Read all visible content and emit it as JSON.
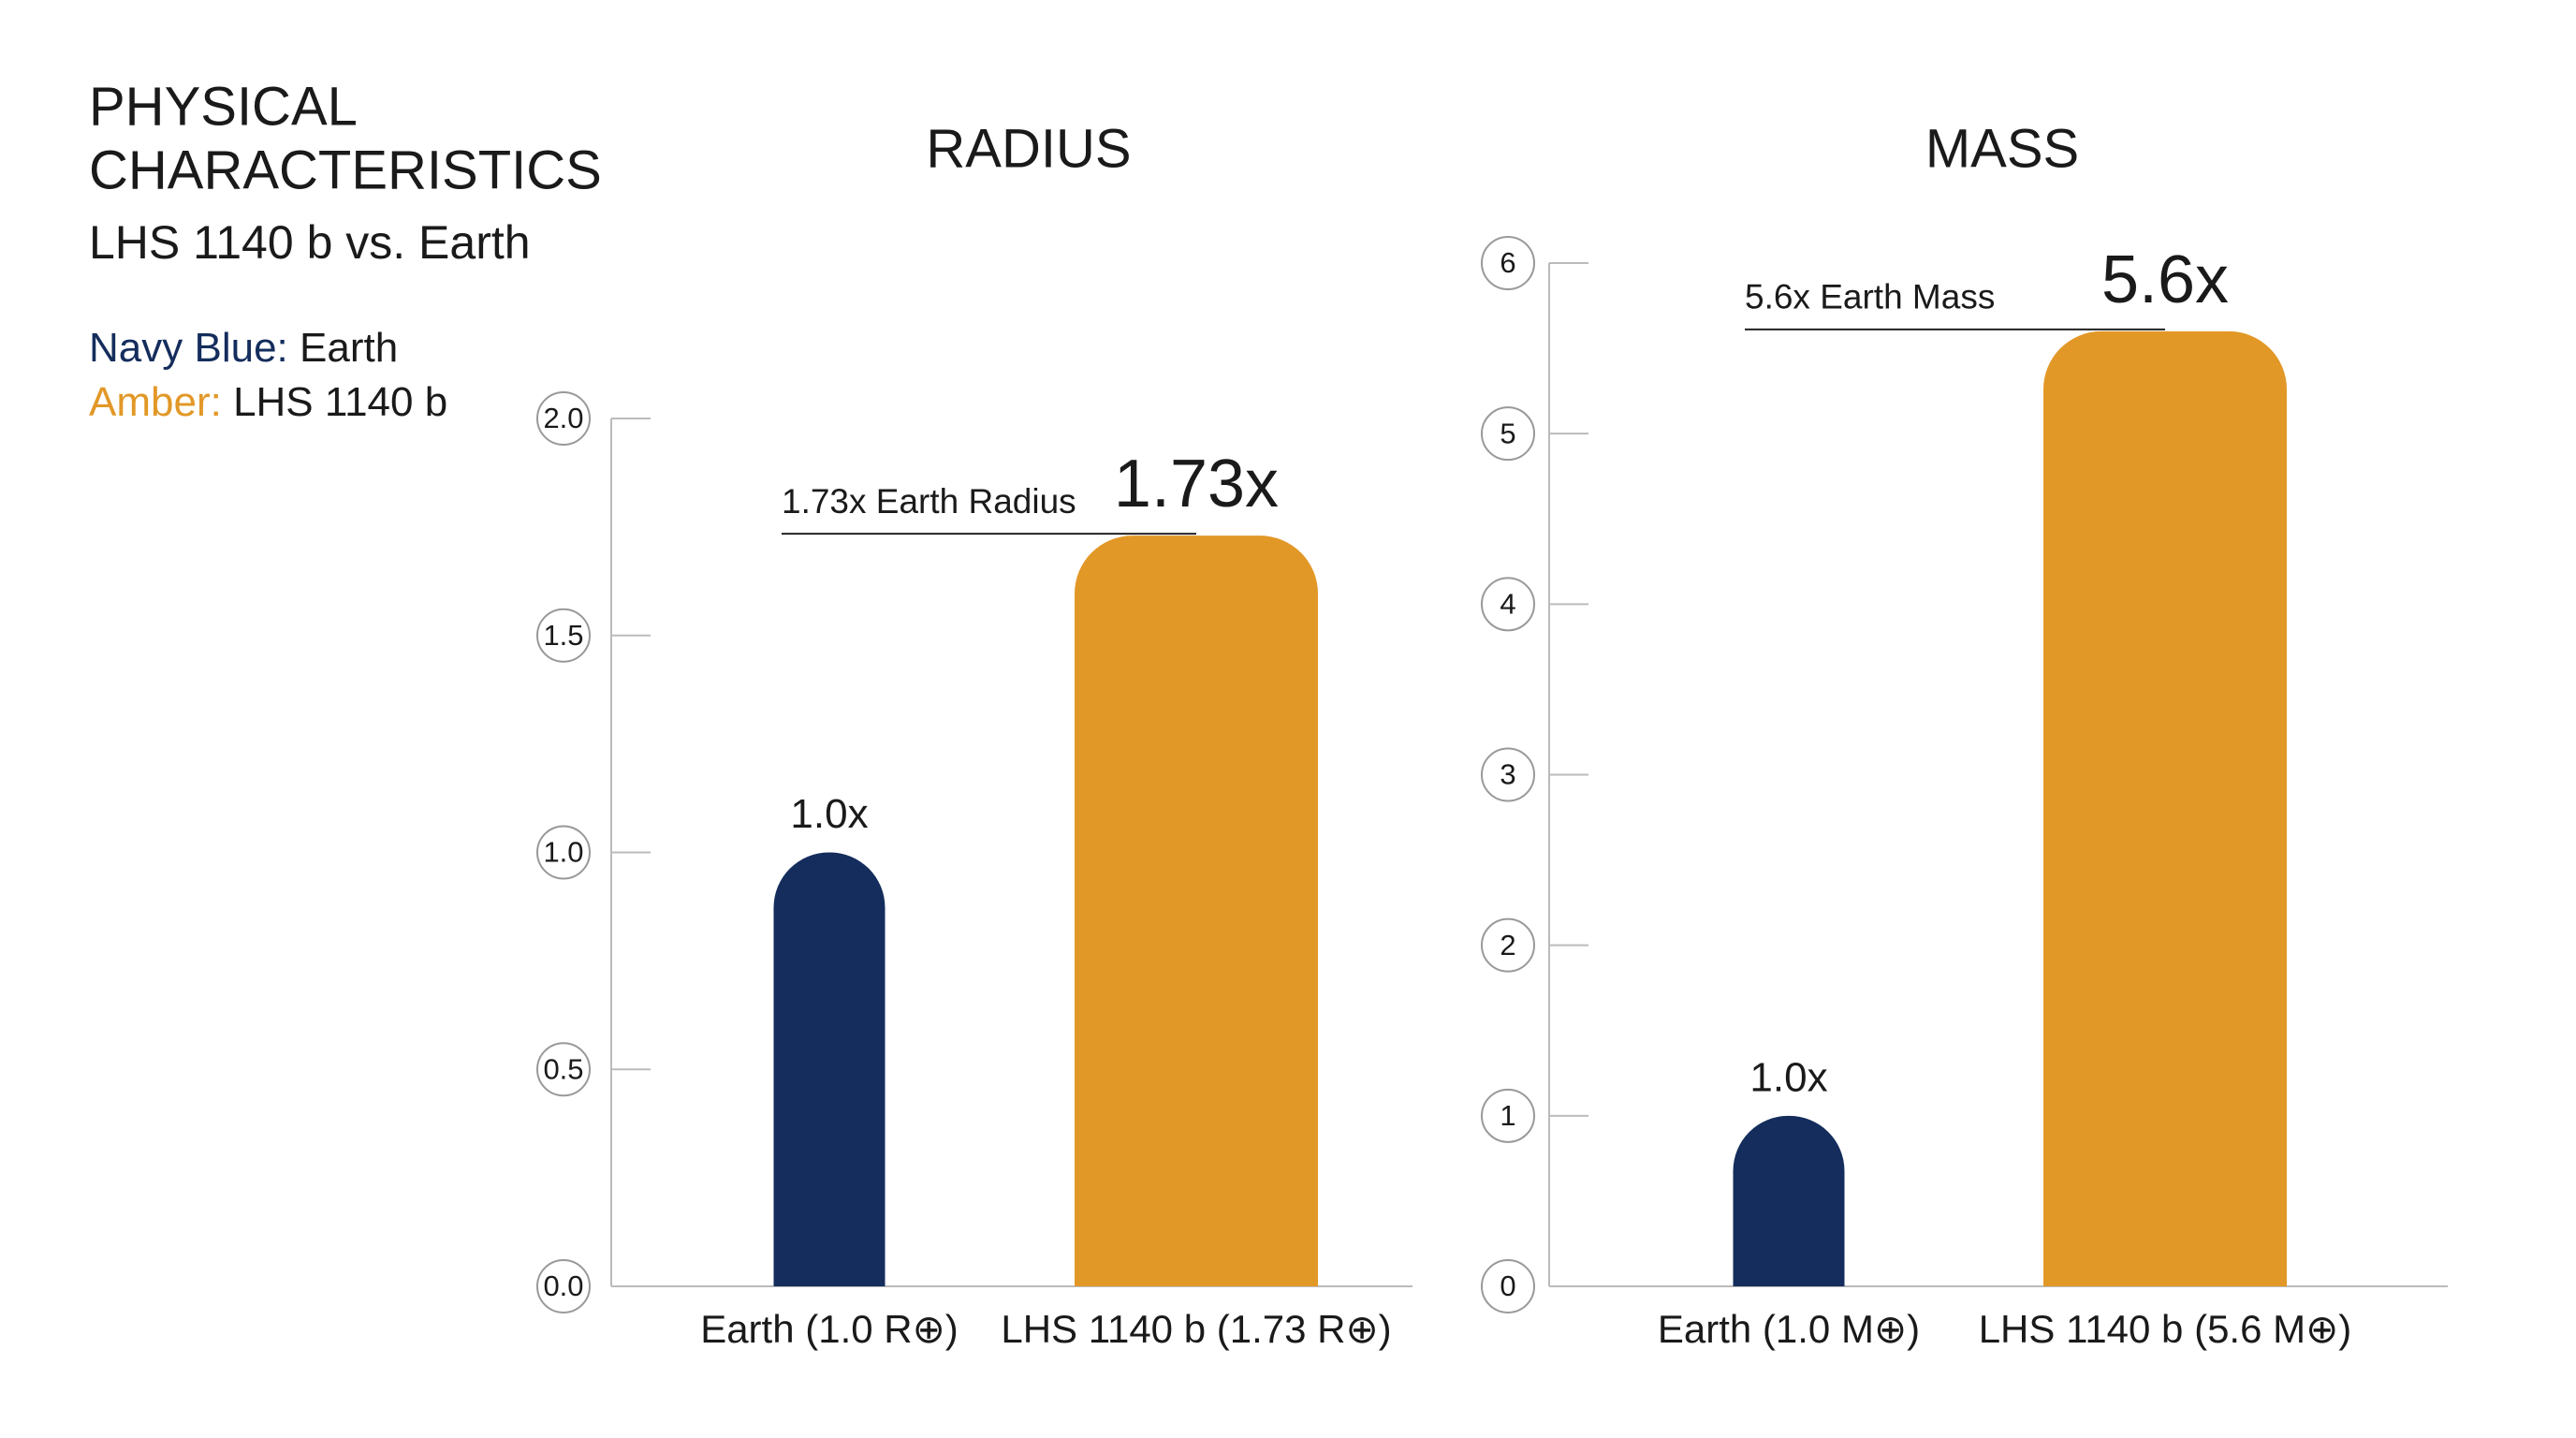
{
  "header": {
    "title_lines": [
      "PHYSICAL",
      "CHARACTERISTICS"
    ],
    "subtitle": "LHS 1140 b vs. Earth"
  },
  "legend": [
    {
      "key": "Navy Blue:",
      "label": "Earth",
      "color": "#142d5c"
    },
    {
      "key": "Amber:",
      "label": "LHS 1140 b",
      "color": "#e29827"
    }
  ],
  "chart_data": [
    {
      "type": "bar",
      "title": "RADIUS",
      "categories": [
        "Earth (1.0 R⊕)",
        "LHS 1140 b (1.73 R⊕)"
      ],
      "values": [
        1.0,
        1.73
      ],
      "value_labels": [
        "1.0x",
        "1.73x"
      ],
      "colors": [
        "#142d5c",
        "#e29827"
      ],
      "annotation": "1.73x Earth Radius",
      "ylim": [
        0,
        2
      ],
      "yticks": [
        {
          "value": 0,
          "label": "0.0"
        },
        0.5,
        {
          "value": 1,
          "label": "1.0"
        },
        1.5,
        {
          "value": 2,
          "label": "2.0"
        }
      ]
    },
    {
      "type": "bar",
      "title": "MASS",
      "categories": [
        "Earth (1.0 M⊕)",
        "LHS 1140 b (5.6 M⊕)"
      ],
      "values": [
        1.0,
        5.6
      ],
      "value_labels": [
        "1.0x",
        "5.6x"
      ],
      "colors": [
        "#142d5c",
        "#e29827"
      ],
      "annotation": "5.6x Earth Mass",
      "ylim": [
        0,
        6
      ],
      "yticks": [
        0,
        1,
        2,
        3,
        4,
        5,
        6
      ]
    }
  ]
}
